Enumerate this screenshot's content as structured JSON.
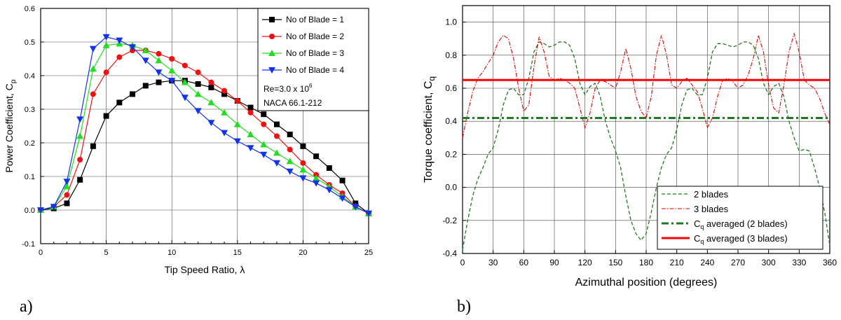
{
  "panel_labels": [
    "a)",
    "b)"
  ],
  "colors": {
    "blade1": "#000000",
    "blade2": "#ee1111",
    "blade3": "#22dd22",
    "blade4": "#1133ee",
    "two_blades": "#1f7a1f",
    "three_blades": "#dd0000",
    "cq_avg_2": "#1f7a1f",
    "cq_avg_3": "#ff0000",
    "grid": "#000000"
  },
  "chart_data": [
    {
      "type": "line",
      "xlabel": "Tip Speed Ratio, λ",
      "ylabel": "Power Coefficient, C",
      "ylabel_sub": "p",
      "xlim": [
        0,
        25
      ],
      "ylim": [
        -0.1,
        0.6
      ],
      "xticks": [
        0,
        5,
        10,
        15,
        20,
        25
      ],
      "yticks": [
        -0.1,
        0.0,
        0.1,
        0.2,
        0.3,
        0.4,
        0.5,
        0.6
      ],
      "ytick_labels": [
        "-0.1",
        "0.0",
        "0.1",
        "0.2",
        "0.3",
        "0.4",
        "0.5",
        "0.6"
      ],
      "grid": true,
      "legend_position": "top-right",
      "annotation": {
        "re_text": "Re=3.0 x 10",
        "re_sup": "6",
        "airfoil": "NACA 66.1-212"
      },
      "series": [
        {
          "name": "No of Blade = 1",
          "marker": "square",
          "x": [
            0,
            1,
            2,
            3,
            4,
            5,
            6,
            7,
            8,
            9,
            10,
            11,
            12,
            13,
            14,
            15,
            16,
            17,
            18,
            19,
            20,
            21,
            22,
            23,
            24,
            25
          ],
          "values": [
            0.0,
            0.005,
            0.02,
            0.09,
            0.19,
            0.28,
            0.32,
            0.345,
            0.37,
            0.38,
            0.385,
            0.385,
            0.375,
            0.365,
            0.345,
            0.325,
            0.305,
            0.285,
            0.255,
            0.225,
            0.19,
            0.16,
            0.125,
            0.088,
            0.02,
            -0.01
          ]
        },
        {
          "name": "No of Blade = 2",
          "marker": "circle",
          "x": [
            0,
            1,
            2,
            3,
            4,
            5,
            6,
            7,
            8,
            9,
            10,
            11,
            12,
            13,
            14,
            15,
            16,
            17,
            18,
            19,
            20,
            21,
            22,
            23,
            24,
            25
          ],
          "values": [
            0.0,
            0.01,
            0.045,
            0.15,
            0.345,
            0.41,
            0.455,
            0.475,
            0.475,
            0.465,
            0.45,
            0.43,
            0.41,
            0.38,
            0.355,
            0.325,
            0.29,
            0.255,
            0.22,
            0.18,
            0.14,
            0.105,
            0.075,
            0.05,
            0.01,
            -0.01
          ]
        },
        {
          "name": "No of Blade = 3",
          "marker": "triangle-up",
          "x": [
            0,
            1,
            2,
            3,
            4,
            5,
            6,
            7,
            8,
            9,
            10,
            11,
            12,
            13,
            14,
            15,
            16,
            17,
            18,
            19,
            20,
            21,
            22,
            23,
            24,
            25
          ],
          "values": [
            0.0,
            0.01,
            0.07,
            0.22,
            0.42,
            0.49,
            0.495,
            0.49,
            0.475,
            0.445,
            0.415,
            0.38,
            0.345,
            0.32,
            0.29,
            0.255,
            0.225,
            0.195,
            0.17,
            0.145,
            0.12,
            0.095,
            0.07,
            0.04,
            0.01,
            -0.01
          ]
        },
        {
          "name": "No of Blade = 4",
          "marker": "triangle-down",
          "x": [
            0,
            1,
            2,
            3,
            4,
            5,
            6,
            7,
            8,
            9,
            10,
            11,
            12,
            13,
            14,
            15,
            16,
            17,
            18,
            19,
            20,
            21,
            22,
            23,
            24,
            25
          ],
          "values": [
            0.0,
            0.01,
            0.085,
            0.27,
            0.48,
            0.515,
            0.505,
            0.485,
            0.445,
            0.41,
            0.385,
            0.335,
            0.295,
            0.26,
            0.23,
            0.205,
            0.185,
            0.165,
            0.14,
            0.115,
            0.095,
            0.08,
            0.06,
            0.035,
            0.01,
            -0.01
          ]
        }
      ]
    },
    {
      "type": "line",
      "xlabel": "Azimuthal position (degrees)",
      "ylabel": "Torque coefficient, C",
      "ylabel_sub": "q",
      "xlim": [
        0,
        360
      ],
      "ylim": [
        -0.4,
        1.1
      ],
      "xticks": [
        0,
        30,
        60,
        90,
        120,
        150,
        180,
        210,
        240,
        270,
        300,
        330,
        360
      ],
      "yticks": [
        -0.4,
        -0.2,
        0.0,
        0.2,
        0.4,
        0.6,
        0.8,
        1.0
      ],
      "ytick_labels": [
        "-0.4",
        "-0.2",
        "0.0",
        "0.2",
        "0.4",
        "0.6",
        "0.8",
        "1.0"
      ],
      "grid": true,
      "legend_position": "bottom-right",
      "series": [
        {
          "name": "2 blades",
          "style": "dashed",
          "x": [
            0,
            5,
            10,
            15,
            20,
            25,
            30,
            35,
            40,
            45,
            50,
            55,
            60,
            65,
            70,
            75,
            80,
            85,
            90,
            95,
            100,
            105,
            110,
            115,
            120,
            125,
            130,
            135,
            140,
            145,
            150,
            155,
            160,
            165,
            170,
            175,
            180,
            185,
            190,
            195,
            200,
            205,
            210,
            215,
            220,
            225,
            230,
            235,
            240,
            245,
            250,
            255,
            260,
            265,
            270,
            275,
            280,
            285,
            290,
            295,
            300,
            305,
            310,
            315,
            320,
            325,
            330,
            335,
            340,
            345,
            350,
            355,
            360
          ],
          "values": [
            -0.38,
            -0.2,
            -0.05,
            0.05,
            0.12,
            0.2,
            0.24,
            0.35,
            0.5,
            0.59,
            0.6,
            0.56,
            0.56,
            0.66,
            0.82,
            0.88,
            0.87,
            0.85,
            0.86,
            0.88,
            0.88,
            0.86,
            0.78,
            0.63,
            0.56,
            0.61,
            0.63,
            0.55,
            0.4,
            0.3,
            0.22,
            0.12,
            -0.05,
            -0.2,
            -0.28,
            -0.32,
            -0.28,
            -0.15,
            0.0,
            0.12,
            0.2,
            0.24,
            0.35,
            0.5,
            0.59,
            0.6,
            0.56,
            0.56,
            0.66,
            0.82,
            0.87,
            0.87,
            0.86,
            0.85,
            0.86,
            0.88,
            0.88,
            0.86,
            0.78,
            0.63,
            0.56,
            0.61,
            0.63,
            0.55,
            0.4,
            0.3,
            0.22,
            0.23,
            0.22,
            0.12,
            0.0,
            -0.15,
            -0.35
          ]
        },
        {
          "name": "3 blades",
          "style": "dashdot",
          "x": [
            0,
            5,
            10,
            15,
            20,
            25,
            30,
            35,
            40,
            45,
            50,
            55,
            60,
            65,
            70,
            75,
            80,
            85,
            90,
            95,
            100,
            105,
            110,
            115,
            120,
            125,
            130,
            135,
            140,
            145,
            150,
            155,
            160,
            165,
            170,
            175,
            180,
            185,
            190,
            195,
            200,
            205,
            210,
            215,
            220,
            225,
            230,
            235,
            240,
            245,
            250,
            255,
            260,
            265,
            270,
            275,
            280,
            285,
            290,
            295,
            300,
            305,
            310,
            315,
            320,
            325,
            330,
            335,
            340,
            345,
            350,
            355,
            360
          ],
          "values": [
            0.3,
            0.45,
            0.58,
            0.66,
            0.7,
            0.75,
            0.8,
            0.88,
            0.92,
            0.9,
            0.78,
            0.6,
            0.46,
            0.5,
            0.73,
            0.91,
            0.82,
            0.67,
            0.65,
            0.66,
            0.65,
            0.63,
            0.6,
            0.48,
            0.36,
            0.45,
            0.6,
            0.65,
            0.64,
            0.62,
            0.6,
            0.7,
            0.84,
            0.72,
            0.55,
            0.46,
            0.42,
            0.55,
            0.8,
            0.92,
            0.8,
            0.62,
            0.6,
            0.64,
            0.66,
            0.62,
            0.58,
            0.48,
            0.36,
            0.42,
            0.55,
            0.65,
            0.66,
            0.64,
            0.6,
            0.62,
            0.68,
            0.78,
            0.92,
            0.82,
            0.62,
            0.48,
            0.45,
            0.62,
            0.82,
            0.93,
            0.82,
            0.65,
            0.62,
            0.6,
            0.54,
            0.45,
            0.38
          ]
        },
        {
          "name": "C",
          "name_sub": "q",
          "name_rest": " averaged (2 blades)",
          "style": "dashdot-thick",
          "x": [
            0,
            360
          ],
          "values": [
            0.42,
            0.42
          ]
        },
        {
          "name": "C",
          "name_sub": "q",
          "name_rest": " averaged (3 blades)",
          "style": "solid-thick",
          "x": [
            0,
            360
          ],
          "values": [
            0.65,
            0.65
          ]
        }
      ]
    }
  ]
}
